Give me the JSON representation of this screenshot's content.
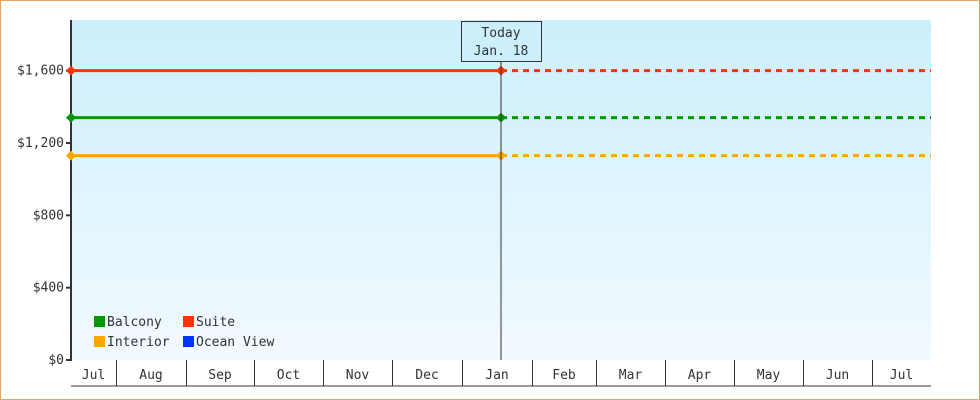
{
  "chart_data": {
    "type": "line",
    "ylim": [
      0,
      1880
    ],
    "yticks": [
      0,
      400,
      800,
      1200,
      1600
    ],
    "ytick_labels": [
      "$0",
      "$400",
      "$800",
      "$1,200",
      "$1,600"
    ],
    "months": [
      "Jul",
      "Aug",
      "Sep",
      "Oct",
      "Nov",
      "Dec",
      "Jan",
      "Feb",
      "Mar",
      "Apr",
      "May",
      "Jun",
      "Jul"
    ],
    "grid": false,
    "today": {
      "title": "Today",
      "date": "Jan. 18"
    },
    "legend_position": "bottom-left",
    "series": [
      {
        "name": "Balcony",
        "color": "#009900",
        "value": 1340,
        "projected": true
      },
      {
        "name": "Suite",
        "color": "#ff3300",
        "value": 1600,
        "projected": true
      },
      {
        "name": "Interior",
        "color": "#ffa500",
        "value": 1130,
        "projected": true
      },
      {
        "name": "Ocean View",
        "color": "#0033ff",
        "value": null,
        "projected": false
      }
    ],
    "background_colors": [
      "#cceffc",
      "#f2faff"
    ]
  }
}
